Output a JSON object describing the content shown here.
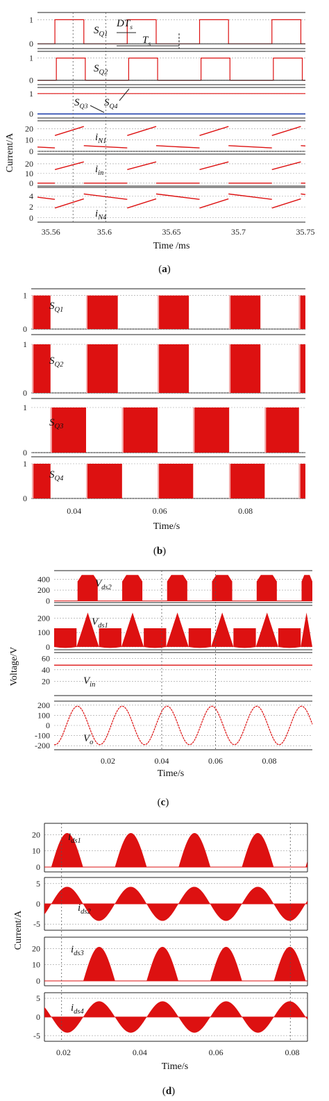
{
  "colors": {
    "signal": "#dd1111",
    "blue": "#1a3aa8",
    "axis": "#222222",
    "grid": "#9a9a9a",
    "vline": "#555555"
  },
  "chart_data": [
    {
      "id": "a",
      "type": "line",
      "caption": "a",
      "xlabel": "Time /ms",
      "ylabel": "Current/A",
      "xlim": [
        35.55,
        35.75
      ],
      "xticks": [
        "35.56",
        "35.6",
        "35.65",
        "35.7",
        "35.75"
      ],
      "xtick_values": [
        35.56,
        35.6,
        35.65,
        35.7,
        35.75
      ],
      "annotations": {
        "dts_main": "DT",
        "dts_sub": "s",
        "ts_main": "T",
        "ts_sub": "s"
      },
      "period": 0.054,
      "duty": 0.4,
      "first_rise": 35.563,
      "panels": [
        {
          "name": "SQ1",
          "label_main": "S",
          "label_sub": "Q1",
          "kind": "pwm",
          "ylim": [
            -0.2,
            1.3
          ],
          "yticks": [
            "1",
            "0"
          ],
          "ytick_values": [
            1,
            0
          ]
        },
        {
          "name": "SQ2",
          "label_main": "S",
          "label_sub": "Q2",
          "kind": "pwm",
          "ylim": [
            -0.2,
            1.3
          ],
          "yticks": [
            "1",
            "0"
          ],
          "ytick_values": [
            1,
            0
          ]
        },
        {
          "name": "SQ3/SQ4",
          "label_main": "S",
          "label_sub": "Q3",
          "label2_main": "S",
          "label2_sub": "Q4",
          "kind": "const",
          "high": 1,
          "low": 0,
          "ylim": [
            -0.2,
            1.3
          ],
          "yticks": [
            "1",
            "0"
          ],
          "ytick_values": [
            1,
            0
          ]
        },
        {
          "name": "iN1",
          "label_main": "i",
          "label_sub": "N1",
          "kind": "ramp",
          "on_start": 14,
          "on_end": 22,
          "off_start": 5,
          "off_end": 3,
          "ylim": [
            0,
            27
          ],
          "yticks": [
            "20",
            "10",
            "0"
          ],
          "ytick_values": [
            20,
            10,
            0
          ]
        },
        {
          "name": "iin",
          "label_main": "i",
          "label_sub": "in",
          "kind": "ramp",
          "on_start": 14,
          "on_end": 22,
          "off_start": 0,
          "off_end": 0,
          "ylim": [
            -3,
            30
          ],
          "yticks": [
            "20",
            "10",
            "0"
          ],
          "ytick_values": [
            20,
            10,
            0
          ]
        },
        {
          "name": "iN4",
          "label_main": "i",
          "label_sub": "N4",
          "kind": "ramp",
          "on_start": 1.8,
          "on_end": 3.5,
          "off_start": 4.4,
          "off_end": 3.4,
          "ylim": [
            -0.8,
            5.6
          ],
          "yticks": [
            "4",
            "2",
            "0"
          ],
          "ytick_values": [
            4,
            2,
            0
          ]
        }
      ]
    },
    {
      "id": "b",
      "type": "area",
      "caption": "b",
      "xlabel": "Time/s",
      "xlim": [
        0.03,
        0.094
      ],
      "xticks": [
        "0.04",
        "0.06",
        "0.08"
      ],
      "xtick_values": [
        0.04,
        0.06,
        0.08
      ],
      "panels": [
        {
          "name": "SQ1",
          "label_main": "S",
          "label_sub": "Q1",
          "ylim": [
            0,
            1.2
          ],
          "yticks": [
            "1",
            "0"
          ],
          "ytick_values": [
            1,
            0
          ],
          "blocks": [
            [
              0.0302,
              0.0345
            ],
            [
              0.0428,
              0.0502
            ],
            [
              0.0595,
              0.0668
            ],
            [
              0.0762,
              0.0835
            ],
            [
              0.0925,
              0.094
            ]
          ]
        },
        {
          "name": "SQ2",
          "label_main": "S",
          "label_sub": "Q2",
          "ylim": [
            0,
            1.2
          ],
          "yticks": [
            "1",
            "0"
          ],
          "ytick_values": [
            1,
            0
          ],
          "blocks": [
            [
              0.0302,
              0.0345
            ],
            [
              0.0428,
              0.0502
            ],
            [
              0.0595,
              0.0668
            ],
            [
              0.0762,
              0.0835
            ],
            [
              0.0925,
              0.094
            ]
          ]
        },
        {
          "name": "SQ3",
          "label_main": "S",
          "label_sub": "Q3",
          "ylim": [
            0,
            1.2
          ],
          "yticks": [
            "1",
            "0"
          ],
          "ytick_values": [
            1,
            0
          ],
          "blocks": [
            [
              0.0345,
              0.0428
            ],
            [
              0.0512,
              0.0595
            ],
            [
              0.0678,
              0.0762
            ],
            [
              0.0845,
              0.0925
            ]
          ]
        },
        {
          "name": "SQ4",
          "label_main": "S",
          "label_sub": "Q4",
          "ylim": [
            0,
            1.2
          ],
          "yticks": [
            "1",
            "0"
          ],
          "ytick_values": [
            1,
            0
          ],
          "blocks": [
            [
              0.0302,
              0.0345
            ],
            [
              0.0428,
              0.0512
            ],
            [
              0.0595,
              0.0678
            ],
            [
              0.0762,
              0.0845
            ],
            [
              0.0925,
              0.094
            ]
          ]
        }
      ]
    },
    {
      "id": "c",
      "type": "area",
      "caption": "c",
      "xlabel": "Time/s",
      "ylabel": "Voltage/V",
      "xlim": [
        0.0,
        0.096
      ],
      "xticks": [
        "0.02",
        "0.04",
        "0.06",
        "0.08"
      ],
      "xtick_values": [
        0.02,
        0.04,
        0.06,
        0.08
      ],
      "vlines": [
        0.04,
        0.06
      ],
      "panels": [
        {
          "name": "Vds2",
          "label_main": "V",
          "label_sub": "ds2",
          "kind": "bumps",
          "peak": 480,
          "starts": [
            0.0087,
            0.0253,
            0.042,
            0.0587,
            0.0753,
            0.092
          ],
          "width": 0.0075,
          "ylim": [
            -30,
            560
          ],
          "yticks": [
            "400",
            "200",
            "0"
          ],
          "ytick_values": [
            400,
            200,
            0
          ]
        },
        {
          "name": "Vds1",
          "label_main": "V",
          "label_sub": "ds1",
          "kind": "mixed",
          "plateau": 130,
          "peak": 240,
          "ylim": [
            -20,
            290
          ],
          "yticks": [
            "200",
            "100",
            "0"
          ],
          "ytick_values": [
            200,
            100,
            0
          ]
        },
        {
          "name": "Vin",
          "label_main": "V",
          "label_sub": "in",
          "kind": "flat",
          "value": 48,
          "ylim": [
            -5,
            70
          ],
          "yticks": [
            "60",
            "40",
            "20"
          ],
          "ytick_values": [
            60,
            40,
            20
          ]
        },
        {
          "name": "Vo",
          "label_main": "V",
          "label_sub": "o",
          "kind": "sine",
          "amplitude": 190,
          "frequency_hz": 60,
          "ylim": [
            -240,
            240
          ],
          "yticks": [
            "200",
            "100",
            "0",
            "-100",
            "-200"
          ],
          "ytick_values": [
            200,
            100,
            0,
            -100,
            -200
          ]
        }
      ]
    },
    {
      "id": "d",
      "type": "area",
      "caption": "d",
      "xlabel": "Time/s",
      "ylabel": "Current/A",
      "xlim": [
        0.015,
        0.084
      ],
      "xticks": [
        "0.02",
        "0.04",
        "0.06",
        "0.08"
      ],
      "xtick_values": [
        0.02,
        0.04,
        0.06,
        0.08
      ],
      "vlines": [
        0.0195,
        0.0795
      ],
      "panels": [
        {
          "name": "ids1",
          "label_main": "i",
          "label_sub": "ds1",
          "kind": "halfsine",
          "peak": 21,
          "starts": [
            0.0168,
            0.0335,
            0.0502,
            0.0668,
            0.0835
          ],
          "ylim": [
            -3,
            27
          ],
          "yticks": [
            "20",
            "10",
            "0"
          ],
          "ytick_values": [
            20,
            10,
            0
          ]
        },
        {
          "name": "ids2",
          "label_main": "i",
          "label_sub": "ds2",
          "kind": "fullsine",
          "amplitude": 4.2,
          "phase_start": 0.0168,
          "ylim": [
            -6.5,
            6.5
          ],
          "yticks": [
            "5",
            "0",
            "-5"
          ],
          "ytick_values": [
            5,
            0,
            -5
          ]
        },
        {
          "name": "ids3",
          "label_main": "i",
          "label_sub": "ds3",
          "kind": "halfsine",
          "peak": 21,
          "starts": [
            0.0252,
            0.0418,
            0.0585,
            0.0752
          ],
          "ylim": [
            -3,
            27
          ],
          "yticks": [
            "20",
            "10",
            "0"
          ],
          "ytick_values": [
            20,
            10,
            0
          ]
        },
        {
          "name": "ids4",
          "label_main": "i",
          "label_sub": "ds4",
          "kind": "fullsine",
          "amplitude": 4.2,
          "phase_start": 0.0085,
          "ylim": [
            -6.5,
            6.5
          ],
          "yticks": [
            "5",
            "0",
            "-5"
          ],
          "ytick_values": [
            5,
            0,
            -5
          ]
        }
      ]
    }
  ]
}
